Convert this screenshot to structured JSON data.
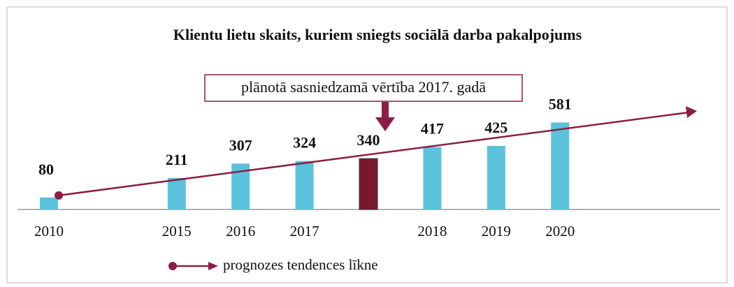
{
  "chart_data": {
    "type": "bar",
    "title": "Klientu lietu skaits, kuriem sniegts sociālā darba pakalpojums",
    "categories": [
      "2010",
      null,
      "2015",
      "2016",
      "2017",
      null,
      "2018",
      "2019",
      "2020",
      null,
      null
    ],
    "values": [
      80,
      null,
      211,
      307,
      324,
      340,
      417,
      425,
      581,
      null,
      null
    ],
    "colors": [
      "#5bc2dd",
      null,
      "#5bc2dd",
      "#5bc2dd",
      "#5bc2dd",
      "#7a1733",
      "#5bc2dd",
      "#5bc2dd",
      "#5bc2dd",
      null,
      null
    ],
    "ylim": [
      0,
      700
    ],
    "annotation": "plānotā sasniedzamā vērtība 2017. gadā",
    "trend": {
      "name": "prognozes tendences līkne",
      "color": "#8c1d45"
    }
  }
}
